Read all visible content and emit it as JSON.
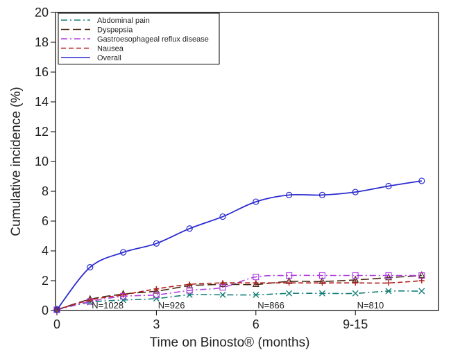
{
  "chart_data": {
    "type": "line",
    "title": "",
    "xlabel": "Time on Binosto® (months)",
    "ylabel": "Cumulative incidence (%)",
    "xlim": [
      0,
      11
    ],
    "ylim": [
      0,
      20
    ],
    "x_ticks": [
      {
        "value": 0,
        "label": "0"
      },
      {
        "value": 3,
        "label": "3"
      },
      {
        "value": 6,
        "label": "6"
      },
      {
        "value": 9,
        "label": "9-15"
      }
    ],
    "y_ticks": [
      0,
      2,
      4,
      6,
      8,
      10,
      12,
      14,
      16,
      18,
      20
    ],
    "legend_position": "top-left",
    "x": [
      0,
      1,
      2,
      3,
      4,
      5,
      6,
      7,
      8,
      9,
      10,
      11
    ],
    "series": [
      {
        "name": "Abdominal pain",
        "color": "#137f76",
        "dash": "dash-dot",
        "marker": "x",
        "values": [
          0.05,
          0.55,
          0.7,
          0.8,
          1.05,
          1.05,
          1.05,
          1.15,
          1.15,
          1.15,
          1.3,
          1.3
        ]
      },
      {
        "name": "Dyspepsia",
        "color": "#4a2a16",
        "dash": "long-dash",
        "marker": "triangle",
        "values": [
          0.05,
          0.75,
          1.1,
          1.3,
          1.65,
          1.75,
          1.75,
          1.95,
          1.95,
          2.05,
          2.2,
          2.35
        ]
      },
      {
        "name": "Gastroesophageal reflux disease",
        "color": "#b13fe2",
        "dash": "dash-dot",
        "marker": "square",
        "values": [
          0.05,
          0.6,
          0.95,
          1.05,
          1.35,
          1.55,
          2.25,
          2.35,
          2.35,
          2.35,
          2.35,
          2.35
        ]
      },
      {
        "name": "Nausea",
        "color": "#b21f1f",
        "dash": "dash",
        "marker": "plus",
        "values": [
          0.05,
          0.7,
          1.05,
          1.45,
          1.75,
          1.85,
          1.85,
          1.85,
          1.85,
          1.85,
          1.85,
          2.0
        ]
      },
      {
        "name": "Overall",
        "color": "#2a2ad0",
        "dash": "solid",
        "marker": "circle",
        "values": [
          0.05,
          2.9,
          3.9,
          4.5,
          5.5,
          6.3,
          7.3,
          7.75,
          7.75,
          7.95,
          8.35,
          8.7
        ]
      }
    ],
    "annotations": [
      {
        "x": 1.05,
        "y": 0.05,
        "text": "N=1028"
      },
      {
        "x": 3.05,
        "y": 0.05,
        "text": "N=926"
      },
      {
        "x": 6.05,
        "y": 0.05,
        "text": "N=866"
      },
      {
        "x": 9.05,
        "y": 0.05,
        "text": "N=810"
      }
    ]
  }
}
